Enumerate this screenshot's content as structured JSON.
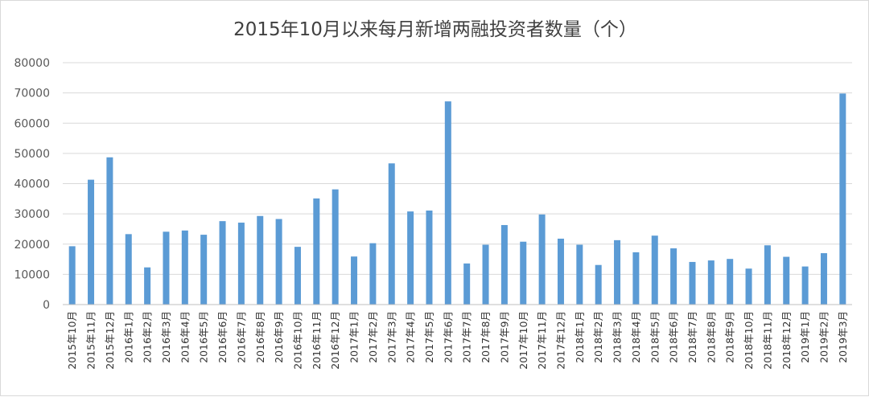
{
  "chart_data": {
    "type": "bar",
    "title": "2015年10月以来每月新增两融投资者数量（个）",
    "xlabel": "",
    "ylabel": "",
    "ylim": [
      0,
      80000
    ],
    "yticks": [
      0,
      10000,
      20000,
      30000,
      40000,
      50000,
      60000,
      70000,
      80000
    ],
    "grid": true,
    "legend": "none",
    "bar_color": "#5b9bd5",
    "grid_color": "#d9d9d9",
    "categories": [
      "2015年10月",
      "2015年11月",
      "2015年12月",
      "2016年1月",
      "2016年2月",
      "2016年3月",
      "2016年4月",
      "2016年5月",
      "2016年6月",
      "2016年7月",
      "2016年8月",
      "2016年9月",
      "2016年10月",
      "2016年11月",
      "2016年12月",
      "2017年1月",
      "2017年2月",
      "2017年3月",
      "2017年4月",
      "2017年5月",
      "2017年6月",
      "2017年7月",
      "2017年8月",
      "2017年9月",
      "2017年10月",
      "2017年11月",
      "2017年12月",
      "2018年1月",
      "2018年2月",
      "2018年3月",
      "2018年4月",
      "2018年5月",
      "2018年6月",
      "2018年7月",
      "2018年8月",
      "2018年9月",
      "2018年10月",
      "2018年11月",
      "2018年12月",
      "2019年1月",
      "2019年2月",
      "2019年3月"
    ],
    "values": [
      19300,
      41300,
      48700,
      23300,
      12300,
      24100,
      24500,
      23100,
      27600,
      27100,
      29300,
      28300,
      19100,
      35100,
      38100,
      15900,
      20300,
      46700,
      30800,
      31100,
      67200,
      13600,
      19800,
      26300,
      20800,
      29800,
      21800,
      19800,
      13100,
      21300,
      17300,
      22800,
      18600,
      14100,
      14600,
      15100,
      11900,
      19600,
      15800,
      12600,
      17000,
      69800
    ]
  }
}
